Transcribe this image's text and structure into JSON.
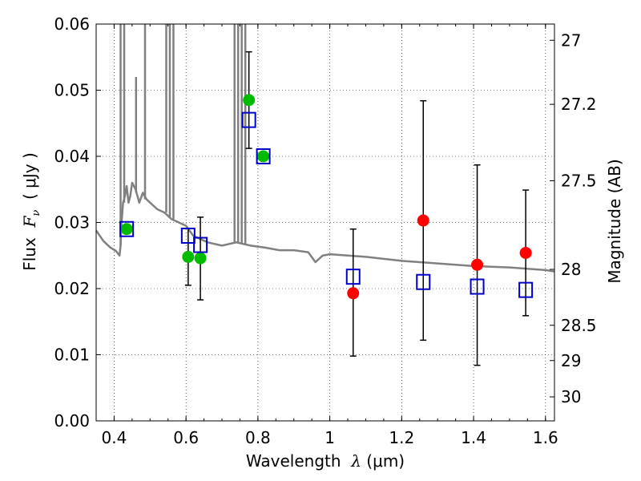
{
  "chart_data": {
    "type": "scatter",
    "title": "",
    "xlabel": {
      "prefix": "Wavelength  ",
      "symbol": "λ",
      "units": " (μm)"
    },
    "ylabel": {
      "prefix": "Flux  ",
      "symbol": "F",
      "subscript": "ν",
      "units": "  ( μJy )"
    },
    "y2label": "Magnitude (AB)",
    "xlim": [
      0.35,
      1.625
    ],
    "ylim": [
      0.0,
      0.06
    ],
    "grid": true,
    "x_ticks": [
      {
        "value": 0.4,
        "label": "0.4"
      },
      {
        "value": 0.6,
        "label": "0.6"
      },
      {
        "value": 0.8,
        "label": "0.8"
      },
      {
        "value": 1.0,
        "label": "1"
      },
      {
        "value": 1.2,
        "label": "1.2"
      },
      {
        "value": 1.4,
        "label": "1.4"
      },
      {
        "value": 1.6,
        "label": "1.6"
      }
    ],
    "y_ticks": [
      {
        "value": 0.0,
        "label": "0.00"
      },
      {
        "value": 0.01,
        "label": "0.01"
      },
      {
        "value": 0.02,
        "label": "0.02"
      },
      {
        "value": 0.03,
        "label": "0.03"
      },
      {
        "value": 0.04,
        "label": "0.04"
      },
      {
        "value": 0.05,
        "label": "0.05"
      },
      {
        "value": 0.06,
        "label": "0.06"
      }
    ],
    "y2_ticks": [
      {
        "mag": 27,
        "label": "27"
      },
      {
        "mag": 27.2,
        "label": "27.2"
      },
      {
        "mag": 27.5,
        "label": "27.5"
      },
      {
        "mag": 28,
        "label": "28"
      },
      {
        "mag": 28.5,
        "label": "28.5"
      },
      {
        "mag": 29,
        "label": "29"
      },
      {
        "mag": 30,
        "label": "30"
      }
    ],
    "colors": {
      "model": "#808080",
      "observed_red": "#ff0000",
      "observed_green": "#00bb00",
      "synthetic": "#0000cc",
      "errorbar": "#000000",
      "grid": "#000000"
    },
    "series": [
      {
        "name": "model-spectrum",
        "style": "line",
        "x": [
          0.35,
          0.37,
          0.39,
          0.405,
          0.415,
          0.418,
          0.42,
          0.425,
          0.43,
          0.435,
          0.44,
          0.445,
          0.45,
          0.46,
          0.47,
          0.48,
          0.49,
          0.5,
          0.52,
          0.54,
          0.56,
          0.58,
          0.6,
          0.62,
          0.64,
          0.66,
          0.7,
          0.74,
          0.78,
          0.82,
          0.86,
          0.9,
          0.94,
          0.96,
          0.98,
          1.0,
          1.05,
          1.1,
          1.15,
          1.2,
          1.25,
          1.3,
          1.35,
          1.4,
          1.45,
          1.5,
          1.55,
          1.6,
          1.625
        ],
        "y": [
          0.0288,
          0.0272,
          0.0262,
          0.0257,
          0.025,
          0.0265,
          0.0295,
          0.033,
          0.034,
          0.0355,
          0.033,
          0.034,
          0.036,
          0.035,
          0.033,
          0.0345,
          0.0335,
          0.033,
          0.032,
          0.0315,
          0.0305,
          0.03,
          0.0295,
          0.028,
          0.0275,
          0.027,
          0.0265,
          0.027,
          0.0265,
          0.0262,
          0.0258,
          0.0258,
          0.0255,
          0.024,
          0.025,
          0.0252,
          0.025,
          0.0248,
          0.0245,
          0.0242,
          0.024,
          0.0238,
          0.0236,
          0.0234,
          0.0233,
          0.0232,
          0.023,
          0.0228,
          0.0226
        ]
      },
      {
        "name": "model-emission-lines",
        "style": "spikes",
        "lines": [
          {
            "x": 0.418,
            "y0": 0.0265,
            "y1": 0.06
          },
          {
            "x": 0.428,
            "y0": 0.033,
            "y1": 0.06
          },
          {
            "x": 0.461,
            "y0": 0.0345,
            "y1": 0.052
          },
          {
            "x": 0.486,
            "y0": 0.0335,
            "y1": 0.06
          },
          {
            "x": 0.545,
            "y0": 0.0315,
            "y1": 0.06
          },
          {
            "x": 0.555,
            "y0": 0.0308,
            "y1": 0.06
          },
          {
            "x": 0.565,
            "y0": 0.0305,
            "y1": 0.06
          },
          {
            "x": 0.735,
            "y0": 0.0268,
            "y1": 0.06
          },
          {
            "x": 0.745,
            "y0": 0.0268,
            "y1": 0.06
          },
          {
            "x": 0.755,
            "y0": 0.0269,
            "y1": 0.06
          },
          {
            "x": 0.765,
            "y0": 0.0268,
            "y1": 0.06
          }
        ]
      },
      {
        "name": "observed-red",
        "style": "circle",
        "points": [
          {
            "x": 1.065,
            "y": 0.0193,
            "yerr_low": 0.0098,
            "yerr_high": 0.029
          },
          {
            "x": 1.26,
            "y": 0.0303,
            "yerr_low": 0.0122,
            "yerr_high": 0.0484
          },
          {
            "x": 1.41,
            "y": 0.0236,
            "yerr_low": 0.0084,
            "yerr_high": 0.0387
          },
          {
            "x": 1.545,
            "y": 0.0254,
            "yerr_low": 0.0159,
            "yerr_high": 0.0349
          }
        ]
      },
      {
        "name": "observed-green",
        "style": "circle",
        "points": [
          {
            "x": 0.606,
            "y": 0.0248,
            "yerr_low": 0.0205,
            "yerr_high": 0.0291
          },
          {
            "x": 0.64,
            "y": 0.0246,
            "yerr_low": 0.0183,
            "yerr_high": 0.0308
          },
          {
            "x": 0.775,
            "y": 0.0485,
            "yerr_low": 0.0412,
            "yerr_high": 0.0558
          },
          {
            "x": 0.435,
            "y": 0.029
          },
          {
            "x": 0.815,
            "y": 0.04
          }
        ]
      },
      {
        "name": "synthetic-photometry",
        "style": "square",
        "points": [
          {
            "x": 0.435,
            "y": 0.029
          },
          {
            "x": 0.606,
            "y": 0.028
          },
          {
            "x": 0.64,
            "y": 0.0266
          },
          {
            "x": 0.775,
            "y": 0.0455
          },
          {
            "x": 0.815,
            "y": 0.04
          },
          {
            "x": 1.065,
            "y": 0.0218
          },
          {
            "x": 1.26,
            "y": 0.021
          },
          {
            "x": 1.41,
            "y": 0.0203
          },
          {
            "x": 1.545,
            "y": 0.0198
          }
        ]
      }
    ]
  }
}
